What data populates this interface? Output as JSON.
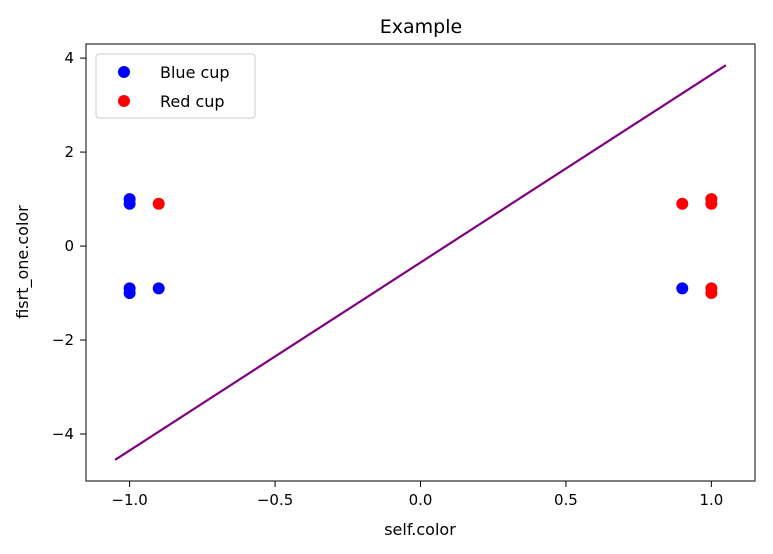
{
  "chart_data": {
    "type": "scatter",
    "title": "Example",
    "xlabel": "self.color",
    "ylabel": "fisrt_one.color",
    "xlim": [
      -1.15,
      1.15
    ],
    "ylim": [
      -5.0,
      4.3
    ],
    "xticks": [
      -1.0,
      -0.5,
      0.0,
      0.5,
      1.0
    ],
    "xtick_labels": [
      "−1.0",
      "−0.5",
      "0.0",
      "0.5",
      "1.0"
    ],
    "yticks": [
      -4,
      -2,
      0,
      2,
      4
    ],
    "ytick_labels": [
      "−4",
      "−2",
      "0",
      "2",
      "4"
    ],
    "grid": false,
    "legend_position": "top-left",
    "series": [
      {
        "name": "Blue cup",
        "color": "#0000ff",
        "points": [
          {
            "x": -1.0,
            "y": 1.0
          },
          {
            "x": -1.0,
            "y": 0.9
          },
          {
            "x": -1.0,
            "y": -0.9
          },
          {
            "x": -1.0,
            "y": -1.0
          },
          {
            "x": -0.9,
            "y": -0.9
          },
          {
            "x": 0.9,
            "y": -0.9
          }
        ]
      },
      {
        "name": "Red cup",
        "color": "#ff0000",
        "points": [
          {
            "x": -0.9,
            "y": 0.9
          },
          {
            "x": 0.9,
            "y": 0.9
          },
          {
            "x": 1.0,
            "y": 1.0
          },
          {
            "x": 1.0,
            "y": 0.9
          },
          {
            "x": 1.0,
            "y": -0.9
          },
          {
            "x": 1.0,
            "y": -1.0
          }
        ]
      }
    ],
    "line": {
      "color": "#800080",
      "points": [
        {
          "x": -1.05,
          "y": -4.55
        },
        {
          "x": 1.05,
          "y": 3.85
        }
      ]
    }
  }
}
